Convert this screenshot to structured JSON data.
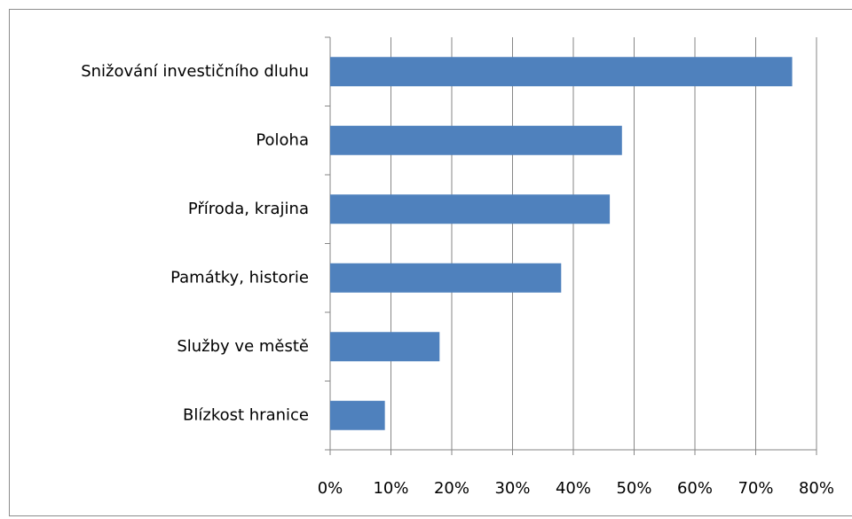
{
  "chart_data": {
    "type": "bar",
    "orientation": "horizontal",
    "categories": [
      "Snižování investičního dluhu",
      "Poloha",
      "Příroda, krajina",
      "Památky, historie",
      "Služby ve městě",
      "Blízkost hranice"
    ],
    "values": [
      76,
      48,
      46,
      38,
      18,
      9
    ],
    "color": "#4f81bd",
    "xlim": [
      0,
      80
    ],
    "xticks": [
      {
        "value": 0,
        "label": "0%"
      },
      {
        "value": 10,
        "label": "10%"
      },
      {
        "value": 20,
        "label": "20%"
      },
      {
        "value": 30,
        "label": "30%"
      },
      {
        "value": 40,
        "label": "40%"
      },
      {
        "value": 50,
        "label": "50%"
      },
      {
        "value": 60,
        "label": "60%"
      },
      {
        "value": 70,
        "label": "70%"
      },
      {
        "value": 80,
        "label": "80%"
      }
    ],
    "grid": true
  }
}
